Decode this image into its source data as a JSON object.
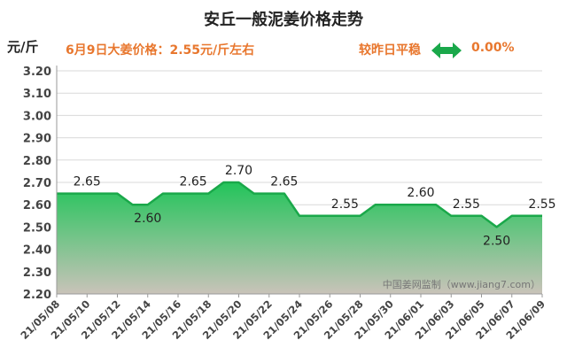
{
  "header": {
    "title": "安丘一般泥姜价格走势",
    "y_unit": "元/斤",
    "price_note": "6月9日大姜价格：2.55元/斤左右",
    "compare_label": "较昨日平稳",
    "change_value": "0.00%",
    "change_icon": "double-arrow-icon",
    "accent_color": "#e8772e",
    "icon_color": "#1aa84a"
  },
  "watermark": "中国姜网监制（www.jiang7.com）",
  "chart_data": {
    "type": "area",
    "x": [
      "21/05/08",
      "21/05/09",
      "21/05/10",
      "21/05/11",
      "21/05/12",
      "21/05/13",
      "21/05/14",
      "21/05/15",
      "21/05/16",
      "21/05/17",
      "21/05/18",
      "21/05/19",
      "21/05/20",
      "21/05/21",
      "21/05/22",
      "21/05/23",
      "21/05/24",
      "21/05/25",
      "21/05/26",
      "21/05/27",
      "21/05/28",
      "21/05/29",
      "21/05/30",
      "21/05/31",
      "21/06/01",
      "21/06/02",
      "21/06/03",
      "21/06/04",
      "21/06/05",
      "21/06/06",
      "21/06/07",
      "21/06/08",
      "21/06/09"
    ],
    "values": [
      2.65,
      2.65,
      2.65,
      2.65,
      2.65,
      2.6,
      2.6,
      2.65,
      2.65,
      2.65,
      2.65,
      2.7,
      2.7,
      2.65,
      2.65,
      2.65,
      2.55,
      2.55,
      2.55,
      2.55,
      2.55,
      2.6,
      2.6,
      2.6,
      2.6,
      2.6,
      2.55,
      2.55,
      2.55,
      2.5,
      2.55,
      2.55,
      2.55
    ],
    "x_tick_labels": [
      "21/05/08",
      "21/05/10",
      "21/05/12",
      "21/05/14",
      "21/05/16",
      "21/05/18",
      "21/05/20",
      "21/05/22",
      "21/05/24",
      "21/05/26",
      "21/05/28",
      "21/05/30",
      "21/06/01",
      "21/06/03",
      "21/06/05",
      "21/06/07",
      "21/06/09"
    ],
    "y_tick_labels": [
      "2.20",
      "2.30",
      "2.40",
      "2.50",
      "2.60",
      "2.70",
      "2.80",
      "2.90",
      "3.00",
      "3.10",
      "3.20"
    ],
    "ylim": [
      2.2,
      3.2
    ],
    "data_labels": [
      {
        "index": 2,
        "value": 2.65,
        "text": "2.65"
      },
      {
        "index": 6,
        "value": 2.6,
        "text": "2.60"
      },
      {
        "index": 9,
        "value": 2.65,
        "text": "2.65"
      },
      {
        "index": 12,
        "value": 2.7,
        "text": "2.70"
      },
      {
        "index": 15,
        "value": 2.65,
        "text": "2.65"
      },
      {
        "index": 19,
        "value": 2.55,
        "text": "2.55"
      },
      {
        "index": 24,
        "value": 2.6,
        "text": "2.60"
      },
      {
        "index": 27,
        "value": 2.55,
        "text": "2.55"
      },
      {
        "index": 29,
        "value": 2.5,
        "text": "2.50"
      },
      {
        "index": 32,
        "value": 2.55,
        "text": "2.55"
      }
    ],
    "grid": true,
    "line_color": "#1aa84a",
    "fill_top_color": "#22c45a",
    "fill_bottom_color": "#c9c3b9"
  }
}
